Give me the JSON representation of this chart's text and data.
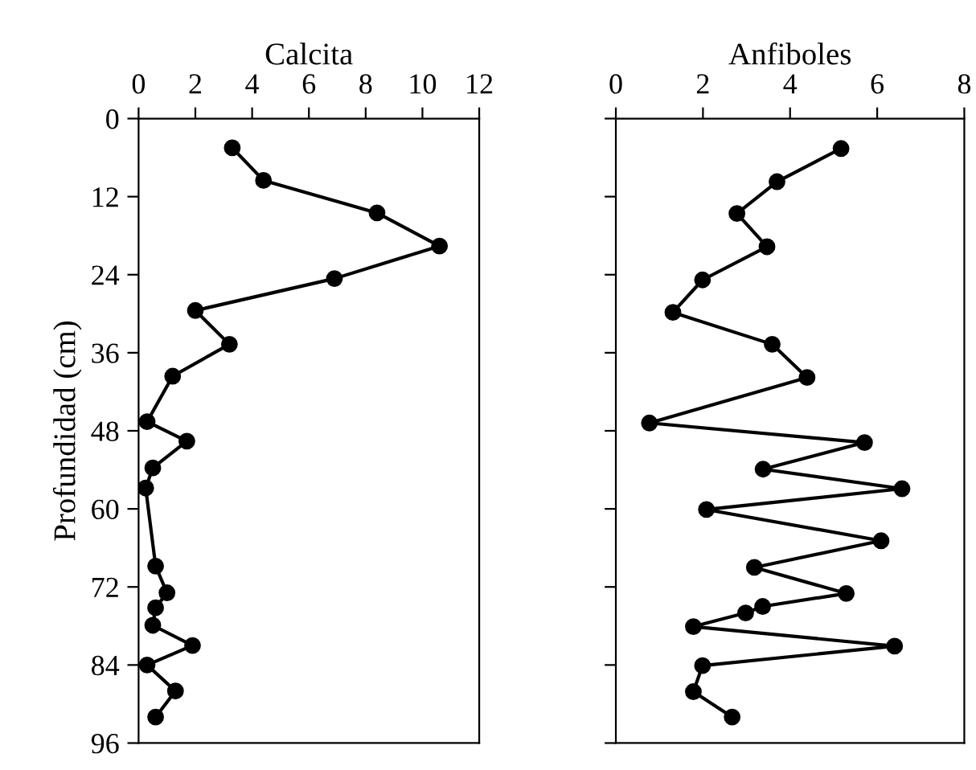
{
  "chart_data": [
    {
      "type": "line",
      "xlabel": "Calcita",
      "ylabel": "Profundidad (cm)",
      "xlim": [
        0,
        12
      ],
      "xticks": [
        0,
        2,
        4,
        6,
        8,
        10,
        12
      ],
      "ylim": [
        96,
        0
      ],
      "yticks": [
        0,
        12,
        24,
        36,
        48,
        60,
        72,
        84,
        96
      ],
      "marker": "circle",
      "line_style": "solid",
      "grid": false,
      "legend": false,
      "series": [
        {
          "color": "#000000",
          "x": [
            3.3,
            4.4,
            8.4,
            10.6,
            6.9,
            2.0,
            3.2,
            1.2,
            0.3,
            1.7,
            0.5,
            0.25,
            0.6,
            1.0,
            0.6,
            0.5,
            1.9,
            0.3,
            1.3,
            0.6
          ],
          "values": [
            4.5,
            9.5,
            14.5,
            19.6,
            24.6,
            29.5,
            34.7,
            39.6,
            46.6,
            49.6,
            53.7,
            56.8,
            68.8,
            72.9,
            75.2,
            77.9,
            81.0,
            84.0,
            88.0,
            92.0
          ]
        }
      ]
    },
    {
      "type": "line",
      "xlabel": "Anfiboles",
      "xlim": [
        0,
        8
      ],
      "xticks": [
        0,
        2,
        4,
        6,
        8
      ],
      "ylim": [
        96,
        0
      ],
      "yticks": [
        0,
        12,
        24,
        36,
        48,
        60,
        72,
        84,
        96
      ],
      "tick_labels": "x",
      "marker": "circle",
      "line_style": "solid",
      "grid": false,
      "legend": false,
      "series": [
        {
          "color": "#000000",
          "x": [
            5.17,
            3.7,
            2.78,
            3.47,
            1.99,
            1.31,
            3.59,
            4.39,
            0.77,
            5.71,
            3.38,
            6.57,
            2.08,
            6.09,
            3.18,
            5.29,
            3.37,
            2.98,
            1.78,
            6.4,
            1.99,
            1.78,
            2.67
          ],
          "values": [
            4.6,
            9.7,
            14.6,
            19.7,
            24.8,
            29.8,
            34.7,
            39.8,
            46.8,
            49.8,
            53.9,
            56.9,
            60.1,
            64.9,
            69.0,
            73.0,
            75.0,
            76.0,
            78.1,
            81.1,
            84.1,
            88.1,
            92.0
          ]
        }
      ]
    }
  ]
}
